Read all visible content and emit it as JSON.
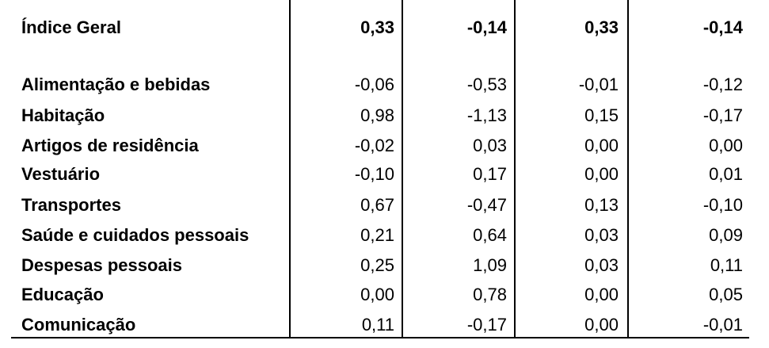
{
  "table": {
    "rows": [
      [
        "Índice Geral",
        "0,33",
        "-0,14",
        "0,33",
        "-0,14"
      ],
      [
        "Alimentação e bebidas",
        "-0,06",
        "-0,53",
        "-0,01",
        "-0,12"
      ],
      [
        "Habitação",
        "0,98",
        "-1,13",
        "0,15",
        "-0,17"
      ],
      [
        "Artigos de residência",
        "-0,02",
        "0,03",
        "0,00",
        "0,00"
      ],
      [
        "Vestuário",
        "-0,10",
        "0,17",
        "0,00",
        "0,01"
      ],
      [
        "Transportes",
        "0,67",
        "-0,47",
        "0,13",
        "-0,10"
      ],
      [
        "Saúde e cuidados pessoais",
        "0,21",
        "0,64",
        "0,03",
        "0,09"
      ],
      [
        "Despesas pessoais",
        "0,25",
        "1,09",
        "0,03",
        "0,11"
      ],
      [
        "Educação",
        "0,00",
        "0,78",
        "0,00",
        "0,05"
      ],
      [
        "Comunicação",
        "0,11",
        "-0,17",
        "0,00",
        "-0,01"
      ]
    ]
  }
}
